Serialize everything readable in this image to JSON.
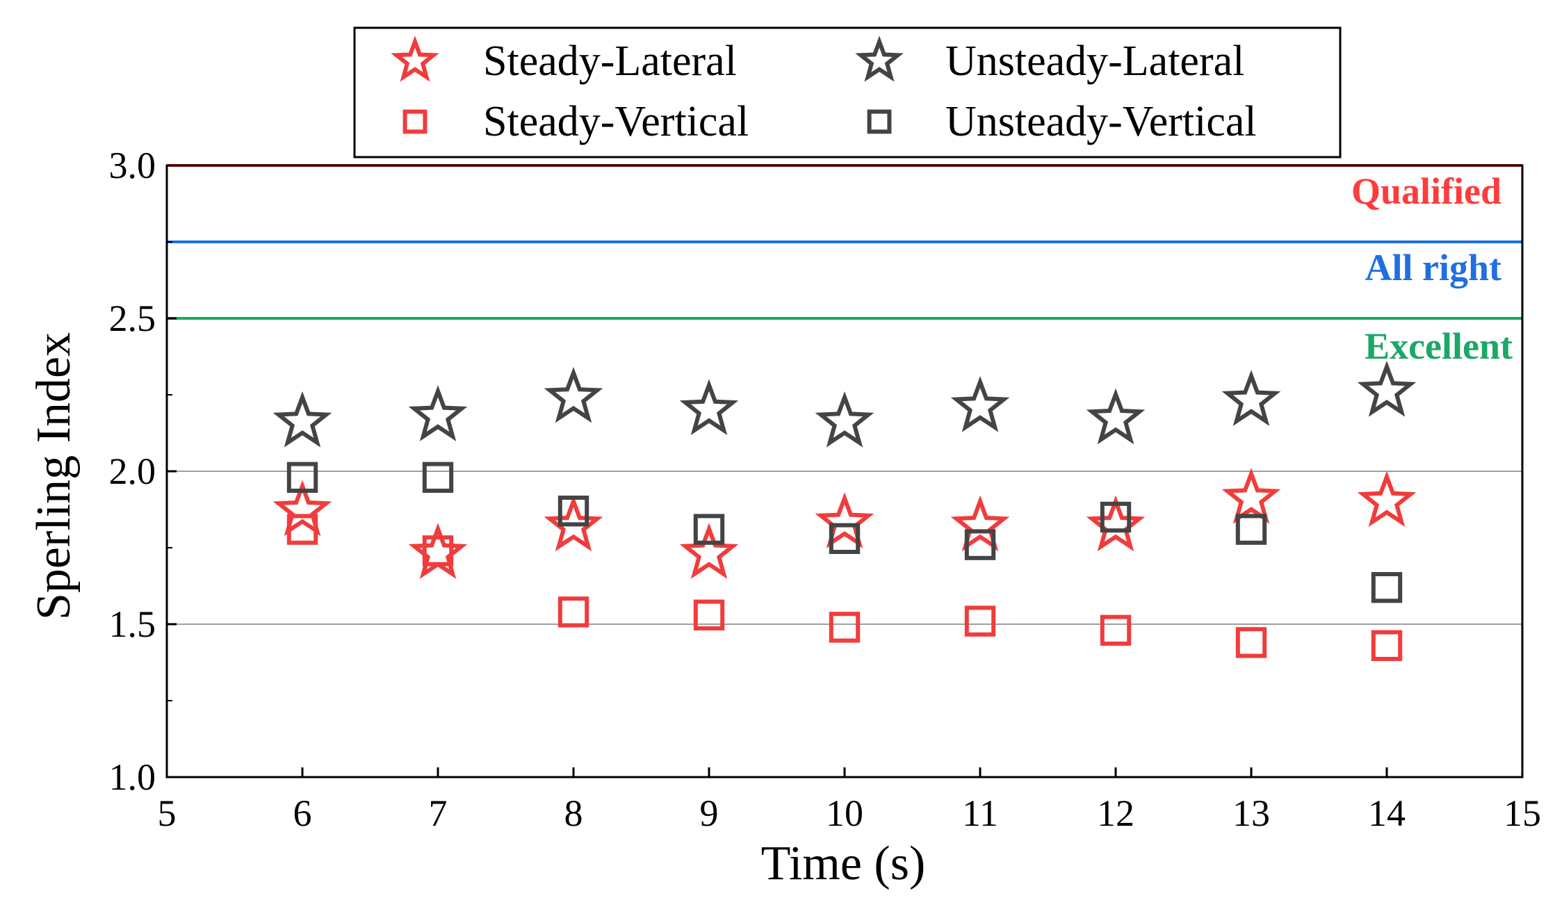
{
  "chart_data": {
    "type": "scatter",
    "xlabel": "Time (s)",
    "ylabel": "Sperling Index",
    "xlim": [
      5,
      15
    ],
    "ylim": [
      1.0,
      3.0
    ],
    "xticks": [
      5,
      6,
      7,
      8,
      9,
      10,
      11,
      12,
      13,
      14,
      15
    ],
    "yticks": [
      1.0,
      1.5,
      2.0,
      2.5,
      3.0
    ],
    "yticks_labels": [
      "1.0",
      "1.5",
      "2.0",
      "2.5",
      "3.0"
    ],
    "grid_y": [
      1.5,
      2.0
    ],
    "legend_position": "top",
    "thresholds": [
      {
        "label": "Qualified",
        "value": 3.0,
        "color": "#ff3b3b"
      },
      {
        "label": "All right",
        "value": 2.75,
        "color": "#1f6fe0"
      },
      {
        "label": "Excellent",
        "value": 2.5,
        "color": "#1aa866"
      }
    ],
    "series": [
      {
        "name": "Steady-Lateral",
        "marker": "star",
        "color": "#f03c3c",
        "x": [
          6,
          7,
          8,
          9,
          10,
          11,
          12,
          13,
          14
        ],
        "y": [
          1.87,
          1.73,
          1.82,
          1.73,
          1.83,
          1.82,
          1.82,
          1.91,
          1.9
        ]
      },
      {
        "name": "Unsteady-Lateral",
        "marker": "star",
        "color": "#444444",
        "x": [
          6,
          7,
          8,
          9,
          10,
          11,
          12,
          13,
          14
        ],
        "y": [
          2.16,
          2.18,
          2.24,
          2.2,
          2.16,
          2.21,
          2.17,
          2.23,
          2.26
        ]
      },
      {
        "name": "Steady-Vertical",
        "marker": "square",
        "color": "#f03c3c",
        "x": [
          6,
          7,
          8,
          9,
          10,
          11,
          12,
          13,
          14
        ],
        "y": [
          1.81,
          1.74,
          1.54,
          1.53,
          1.49,
          1.51,
          1.48,
          1.44,
          1.43
        ]
      },
      {
        "name": "Unsteady-Vertical",
        "marker": "square",
        "color": "#444444",
        "x": [
          6,
          7,
          8,
          9,
          10,
          11,
          12,
          13,
          14
        ],
        "y": [
          1.98,
          1.98,
          1.87,
          1.81,
          1.78,
          1.76,
          1.85,
          1.81,
          1.62
        ]
      }
    ]
  }
}
